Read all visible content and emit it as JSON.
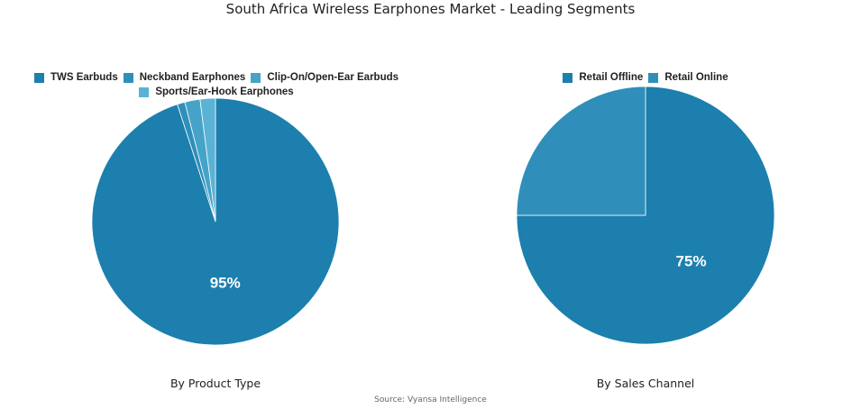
{
  "title": "South Africa Wireless Earphones Market - Leading Segments",
  "source": "Source: Vyansa Intelligence",
  "chart_data": [
    {
      "type": "pie",
      "subtitle": "By Product Type",
      "legend_placement": "top",
      "slices": [
        {
          "name": "TWS Earbuds",
          "value": 95,
          "label": "95%",
          "color": "#1c7fae"
        },
        {
          "name": "Neckband Earphones",
          "value": 1,
          "label": "",
          "color": "#2f8fba"
        },
        {
          "name": "Clip-On/Open-Ear Earbuds",
          "value": 2,
          "label": "",
          "color": "#45a3c8"
        },
        {
          "name": "Sports/Ear-Hook Earphones",
          "value": 2,
          "label": "",
          "color": "#5ab2d4"
        }
      ]
    },
    {
      "type": "pie",
      "subtitle": "By Sales Channel",
      "legend_placement": "top",
      "slices": [
        {
          "name": "Retail Offline",
          "value": 75,
          "label": "75%",
          "color": "#1c7fae"
        },
        {
          "name": "Retail Online",
          "value": 25,
          "label": "",
          "color": "#2f8fba"
        }
      ]
    }
  ]
}
